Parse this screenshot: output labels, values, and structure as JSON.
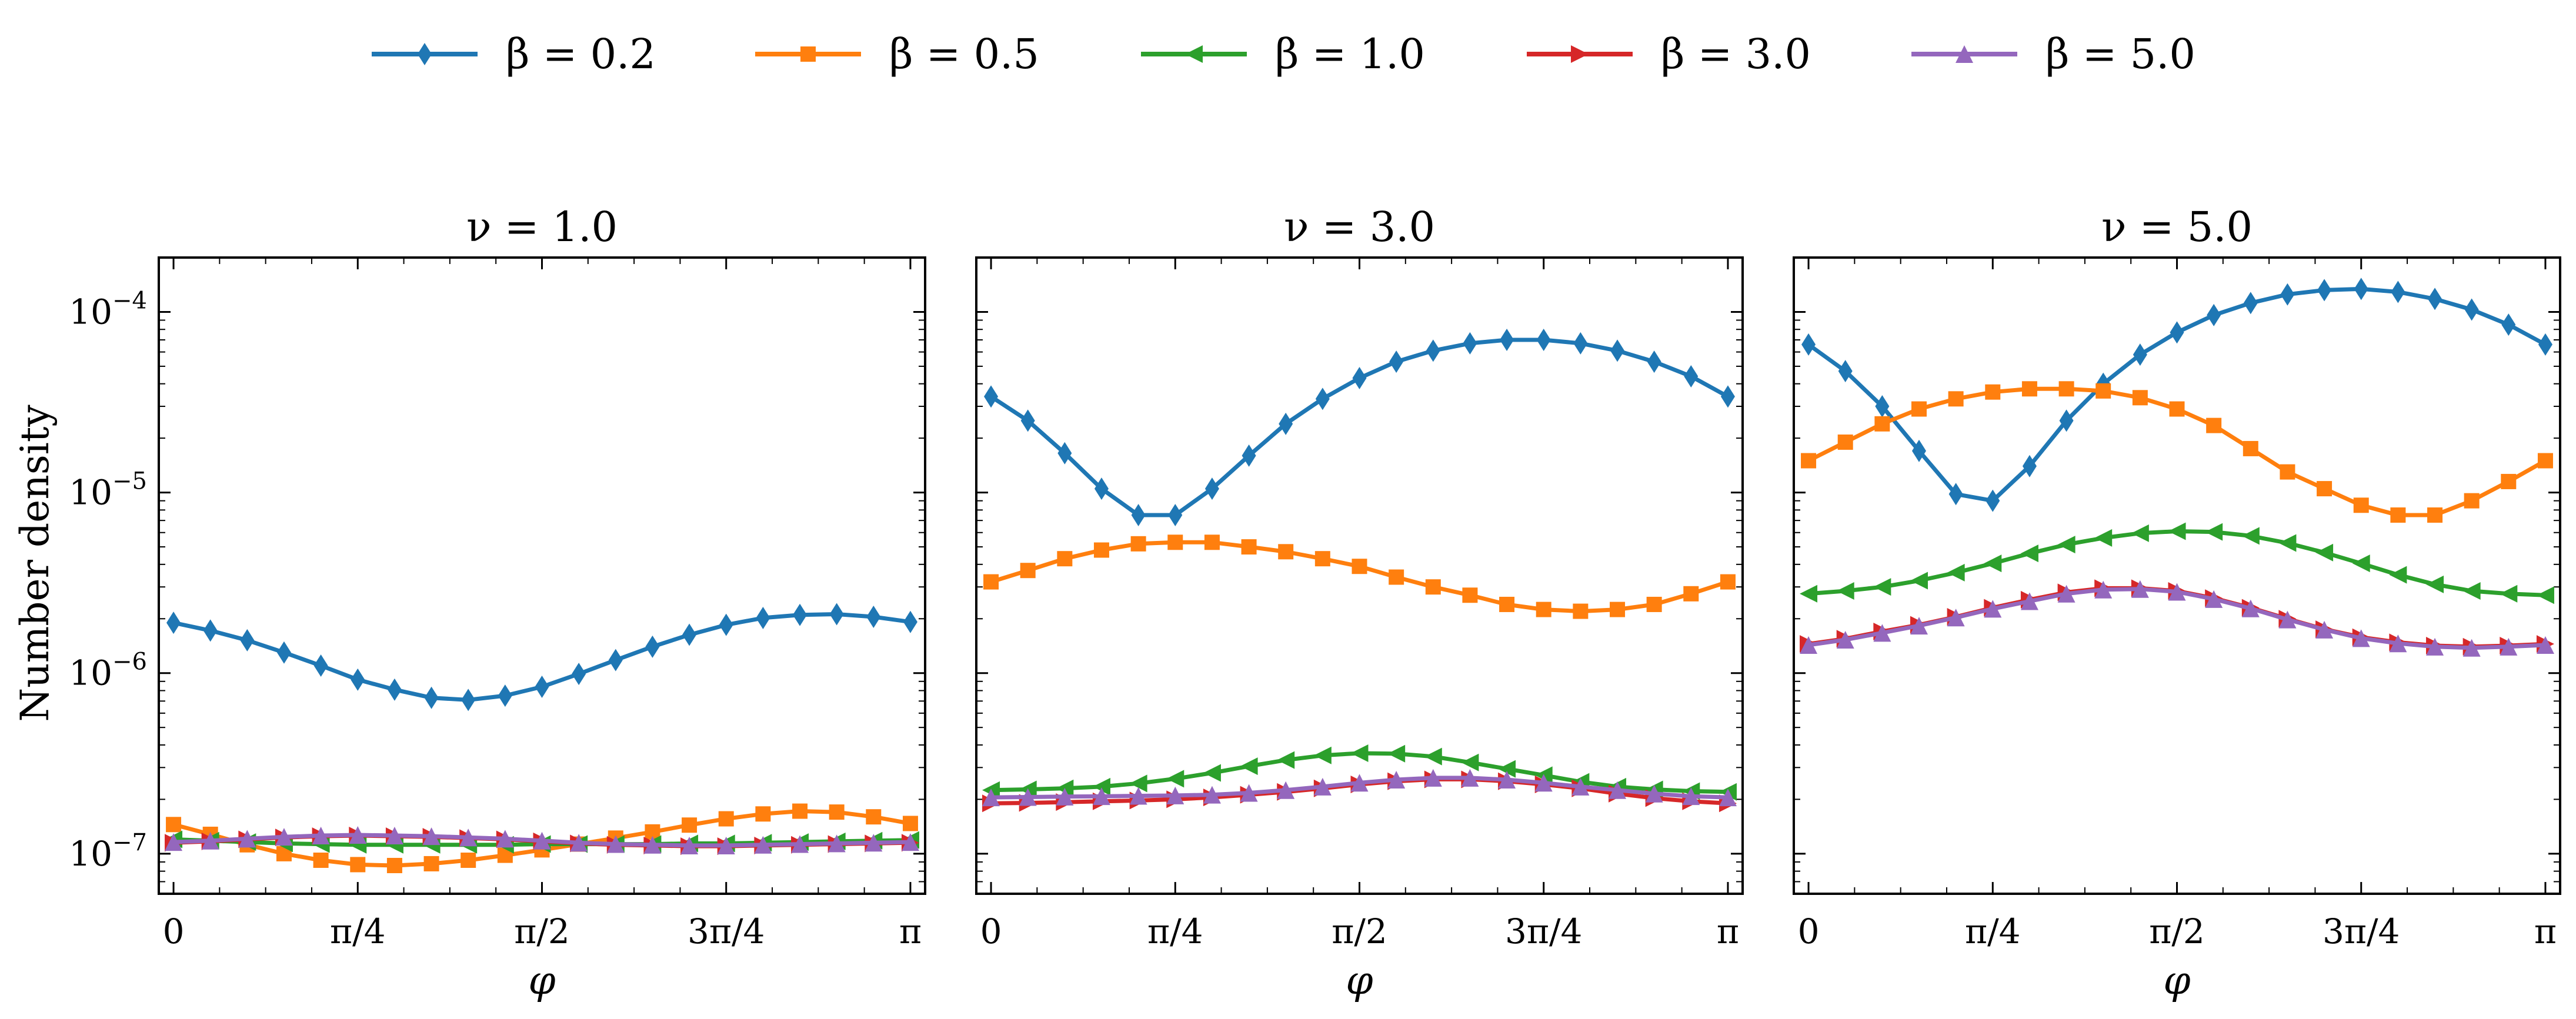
{
  "chart_data": {
    "type": "line",
    "ylabel": "Number density",
    "xlabel": "φ",
    "yscale": "log",
    "ylim": [
      6e-08,
      0.0002
    ],
    "xlim": [
      -0.0628,
      3.2044
    ],
    "x_ticks": [
      {
        "value": 0,
        "label": "0"
      },
      {
        "value": 0.7854,
        "label": "π/4"
      },
      {
        "value": 1.5708,
        "label": "π/2"
      },
      {
        "value": 2.3562,
        "label": "3π/4"
      },
      {
        "value": 3.1416,
        "label": "π"
      }
    ],
    "y_ticks": [
      {
        "value": 1e-07,
        "base": "10",
        "exp": "−7"
      },
      {
        "value": 1e-06,
        "base": "10",
        "exp": "−6"
      },
      {
        "value": 1e-05,
        "base": "10",
        "exp": "−5"
      },
      {
        "value": 0.0001,
        "base": "10",
        "exp": "−4"
      }
    ],
    "x": [
      0,
      0.1571,
      0.3142,
      0.4712,
      0.6283,
      0.7854,
      0.9425,
      1.0996,
      1.2566,
      1.4137,
      1.5708,
      1.7279,
      1.885,
      2.042,
      2.1991,
      2.3562,
      2.5133,
      2.6704,
      2.8274,
      2.9845,
      3.1416
    ],
    "legend": [
      {
        "name": "β = 0.2",
        "color": "#1f77b4",
        "marker": "diamond"
      },
      {
        "name": "β = 0.5",
        "color": "#ff7f0e",
        "marker": "square"
      },
      {
        "name": "β = 1.0",
        "color": "#2ca02c",
        "marker": "triangle-left"
      },
      {
        "name": "β = 3.0",
        "color": "#d62728",
        "marker": "triangle-right"
      },
      {
        "name": "β = 5.0",
        "color": "#9467bd",
        "marker": "triangle-up"
      }
    ],
    "panels": [
      {
        "title": "ν = 1.0",
        "series": [
          {
            "name": "β = 0.2",
            "values": [
              1.9e-06,
              1.72e-06,
              1.52e-06,
              1.3e-06,
              1.1e-06,
              9.2e-07,
              8.1e-07,
              7.3e-07,
              7.1e-07,
              7.5e-07,
              8.4e-07,
              9.9e-07,
              1.18e-06,
              1.4e-06,
              1.63e-06,
              1.85e-06,
              2.02e-06,
              2.1e-06,
              2.12e-06,
              2.05e-06,
              1.92e-06
            ]
          },
          {
            "name": "β = 0.5",
            "values": [
              1.45e-07,
              1.28e-07,
              1.12e-07,
              1e-07,
              9.2e-08,
              8.7e-08,
              8.6e-08,
              8.8e-08,
              9.2e-08,
              9.8e-08,
              1.05e-07,
              1.13e-07,
              1.22e-07,
              1.32e-07,
              1.44e-07,
              1.56e-07,
              1.66e-07,
              1.72e-07,
              1.7e-07,
              1.6e-07,
              1.47e-07
            ]
          },
          {
            "name": "β = 1.0",
            "values": [
              1.2e-07,
              1.18e-07,
              1.16e-07,
              1.14e-07,
              1.13e-07,
              1.12e-07,
              1.12e-07,
              1.12e-07,
              1.12e-07,
              1.12e-07,
              1.13e-07,
              1.13e-07,
              1.13e-07,
              1.13e-07,
              1.14e-07,
              1.14e-07,
              1.15e-07,
              1.16e-07,
              1.17e-07,
              1.18e-07,
              1.19e-07
            ]
          },
          {
            "name": "β = 3.0",
            "values": [
              1.15e-07,
              1.17e-07,
              1.2e-07,
              1.23e-07,
              1.25e-07,
              1.26e-07,
              1.25e-07,
              1.24e-07,
              1.22e-07,
              1.2e-07,
              1.17e-07,
              1.14e-07,
              1.12e-07,
              1.11e-07,
              1.1e-07,
              1.1e-07,
              1.11e-07,
              1.12e-07,
              1.13e-07,
              1.14e-07,
              1.15e-07
            ]
          },
          {
            "name": "β = 5.0",
            "values": [
              1.16e-07,
              1.18e-07,
              1.21e-07,
              1.24e-07,
              1.26e-07,
              1.27e-07,
              1.26e-07,
              1.25e-07,
              1.23e-07,
              1.21e-07,
              1.18e-07,
              1.15e-07,
              1.13e-07,
              1.12e-07,
              1.11e-07,
              1.11e-07,
              1.12e-07,
              1.13e-07,
              1.14e-07,
              1.15e-07,
              1.16e-07
            ]
          }
        ]
      },
      {
        "title": "ν = 3.0",
        "series": [
          {
            "name": "β = 0.2",
            "values": [
              3.4e-05,
              2.5e-05,
              1.65e-05,
              1.05e-05,
              7.5e-06,
              7.5e-06,
              1.05e-05,
              1.6e-05,
              2.4e-05,
              3.3e-05,
              4.3e-05,
              5.3e-05,
              6.1e-05,
              6.7e-05,
              7e-05,
              7e-05,
              6.7e-05,
              6.1e-05,
              5.3e-05,
              4.4e-05,
              3.4e-05
            ]
          },
          {
            "name": "β = 0.5",
            "values": [
              3.2e-06,
              3.7e-06,
              4.3e-06,
              4.8e-06,
              5.2e-06,
              5.3e-06,
              5.3e-06,
              5e-06,
              4.7e-06,
              4.3e-06,
              3.9e-06,
              3.4e-06,
              3e-06,
              2.7e-06,
              2.4e-06,
              2.25e-06,
              2.2e-06,
              2.25e-06,
              2.4e-06,
              2.75e-06,
              3.2e-06
            ]
          },
          {
            "name": "β = 1.0",
            "values": [
              2.25e-07,
              2.27e-07,
              2.3e-07,
              2.35e-07,
              2.45e-07,
              2.6e-07,
              2.8e-07,
              3.05e-07,
              3.3e-07,
              3.5e-07,
              3.6e-07,
              3.58e-07,
              3.45e-07,
              3.2e-07,
              2.95e-07,
              2.72e-07,
              2.5e-07,
              2.35e-07,
              2.27e-07,
              2.22e-07,
              2.2e-07
            ]
          },
          {
            "name": "β = 3.0",
            "values": [
              1.9e-07,
              1.91e-07,
              1.93e-07,
              1.95e-07,
              1.97e-07,
              2e-07,
              2.05e-07,
              2.12e-07,
              2.2e-07,
              2.3e-07,
              2.42e-07,
              2.52e-07,
              2.58e-07,
              2.58e-07,
              2.52e-07,
              2.42e-07,
              2.3e-07,
              2.15e-07,
              2.03e-07,
              1.95e-07,
              1.9e-07
            ]
          },
          {
            "name": "β = 5.0",
            "values": [
              2.05e-07,
              2.06e-07,
              2.07e-07,
              2.08e-07,
              2.09e-07,
              2.1e-07,
              2.12e-07,
              2.17e-07,
              2.25e-07,
              2.35e-07,
              2.47e-07,
              2.57e-07,
              2.63e-07,
              2.63e-07,
              2.57e-07,
              2.47e-07,
              2.35e-07,
              2.25e-07,
              2.15e-07,
              2.08e-07,
              2.05e-07
            ]
          }
        ]
      },
      {
        "title": "ν = 5.0",
        "series": [
          {
            "name": "β = 0.2",
            "values": [
              6.6e-05,
              4.7e-05,
              3e-05,
              1.7e-05,
              9.8e-06,
              9e-06,
              1.4e-05,
              2.5e-05,
              4e-05,
              5.8e-05,
              7.7e-05,
              9.6e-05,
              0.000112,
              0.000125,
              0.000132,
              0.000134,
              0.000129,
              0.000118,
              0.000103,
              8.5e-05,
              6.6e-05
            ]
          },
          {
            "name": "β = 0.5",
            "values": [
              1.5e-05,
              1.9e-05,
              2.4e-05,
              2.9e-05,
              3.3e-05,
              3.6e-05,
              3.75e-05,
              3.75e-05,
              3.65e-05,
              3.35e-05,
              2.9e-05,
              2.35e-05,
              1.75e-05,
              1.3e-05,
              1.05e-05,
              8.5e-06,
              7.5e-06,
              7.5e-06,
              9e-06,
              1.15e-05,
              1.5e-05
            ]
          },
          {
            "name": "β = 1.0",
            "values": [
              2.75e-06,
              2.85e-06,
              3e-06,
              3.25e-06,
              3.6e-06,
              4.05e-06,
              4.6e-06,
              5.15e-06,
              5.6e-06,
              5.95e-06,
              6.1e-06,
              6.05e-06,
              5.75e-06,
              5.25e-06,
              4.65e-06,
              4.05e-06,
              3.5e-06,
              3.1e-06,
              2.85e-06,
              2.75e-06,
              2.7e-06
            ]
          },
          {
            "name": "β = 3.0",
            "values": [
              1.45e-06,
              1.55e-06,
              1.7e-06,
              1.85e-06,
              2.05e-06,
              2.3e-06,
              2.55e-06,
              2.8e-06,
              2.95e-06,
              2.95e-06,
              2.85e-06,
              2.6e-06,
              2.3e-06,
              2e-06,
              1.75e-06,
              1.58e-06,
              1.48e-06,
              1.42e-06,
              1.4e-06,
              1.42e-06,
              1.45e-06
            ]
          },
          {
            "name": "β = 5.0",
            "values": [
              1.43e-06,
              1.53e-06,
              1.67e-06,
              1.83e-06,
              2.03e-06,
              2.27e-06,
              2.5e-06,
              2.75e-06,
              2.9e-06,
              2.92e-06,
              2.82e-06,
              2.57e-06,
              2.28e-06,
              1.98e-06,
              1.74e-06,
              1.56e-06,
              1.46e-06,
              1.4e-06,
              1.38e-06,
              1.4e-06,
              1.43e-06
            ]
          }
        ]
      }
    ]
  }
}
